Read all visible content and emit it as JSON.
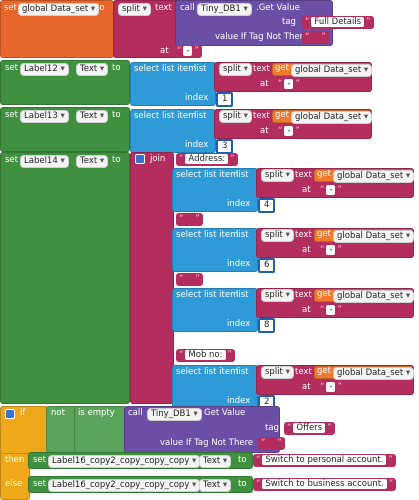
{
  "header_block": {
    "set": "set",
    "variable": "global Data_set",
    "to": "to",
    "split": "split",
    "text": "text",
    "call": "call",
    "component": "Tiny_DB1",
    "method": ".Get Value",
    "tag": "tag",
    "tag_value": "Full Details",
    "default_label": "value If Tag Not There",
    "default_value": " ",
    "at": "at",
    "separator": "-"
  },
  "label_blocks": [
    {
      "set": "set",
      "component": "Label12",
      "property": "Text",
      "to": "to",
      "item": {
        "select": "select list item",
        "list": "list",
        "split": "split",
        "text": "text",
        "get": "get",
        "variable": "global Data_set",
        "at": "at",
        "separator": "-",
        "index_label": "index",
        "index": 1
      }
    },
    {
      "set": "set",
      "component": "Label13",
      "property": "Text",
      "to": "to",
      "item": {
        "select": "select list item",
        "list": "list",
        "split": "split",
        "text": "text",
        "get": "get",
        "variable": "global Data_set",
        "at": "at",
        "separator": "-",
        "index_label": "index",
        "index": 3
      }
    }
  ],
  "join_block": {
    "set": "set",
    "component": "Label14",
    "property": "Text",
    "to": "to",
    "join": "join",
    "items": [
      {
        "string": "Address:"
      },
      {
        "select": "select list item",
        "list": "list",
        "split": "split",
        "text": "text",
        "get": "get",
        "variable": "global Data_set",
        "at": "at",
        "separator": "-",
        "index_label": "index",
        "index": 4
      },
      {
        "string": " "
      },
      {
        "select": "select list item",
        "list": "list",
        "split": "split",
        "text": "text",
        "get": "get",
        "variable": "global Data_set",
        "at": "at",
        "separator": "-",
        "index_label": "index",
        "index": 6
      },
      {
        "string": " "
      },
      {
        "select": "select list item",
        "list": "list",
        "split": "split",
        "text": "text",
        "get": "get",
        "variable": "global Data_set",
        "at": "at",
        "separator": "-",
        "index_label": "index",
        "index": 8
      },
      {
        "string": "Mob no:"
      },
      {
        "select": "select list item",
        "list": "list",
        "split": "split",
        "text": "text",
        "get": "get",
        "variable": "global Data_set",
        "at": "at",
        "separator": "-",
        "index_label": "index",
        "index": 2
      }
    ]
  },
  "if_block": {
    "if": "if",
    "not": "not",
    "is_empty": "is empty",
    "call": "call",
    "component": "Tiny_DB1",
    "method": "Get Value",
    "tag": "tag",
    "tag_value": "Offers",
    "default_label": "value If Tag Not There",
    "default_value": " ",
    "then": "then",
    "then_set": {
      "set": "set",
      "component": "Label16_copy2_copy_copy_copy",
      "property": "Text",
      "to": "to",
      "value": "Switch to personal account."
    },
    "else": "else",
    "else_set": {
      "set": "set",
      "component": "Label16_copy2_copy_copy_copy",
      "property": "Text",
      "to": "to",
      "value": "Switch to business account."
    }
  }
}
